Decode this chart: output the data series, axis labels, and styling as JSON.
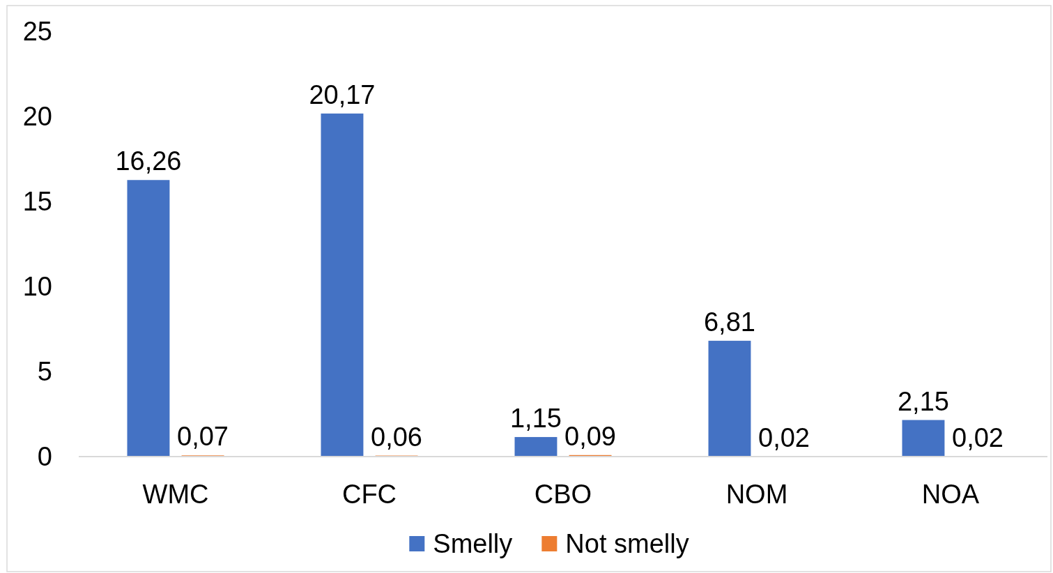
{
  "chart_data": {
    "type": "bar",
    "categories": [
      "WMC",
      "CFC",
      "CBO",
      "NOM",
      "NOA"
    ],
    "series": [
      {
        "name": "Smelly",
        "color": "#4472c4",
        "values": [
          16.26,
          20.17,
          1.15,
          6.81,
          2.15
        ],
        "value_labels": [
          "16,26",
          "20,17",
          "1,15",
          "6,81",
          "2,15"
        ]
      },
      {
        "name": "Not smelly",
        "color": "#ed7d31",
        "values": [
          0.07,
          0.06,
          0.09,
          0.02,
          0.02
        ],
        "value_labels": [
          "0,07",
          "0,06",
          "0,09",
          "0,02",
          "0,02"
        ]
      }
    ],
    "ylim": [
      0,
      25
    ],
    "yticks": [
      0,
      5,
      10,
      15,
      20,
      25
    ],
    "legend": "bottom"
  }
}
